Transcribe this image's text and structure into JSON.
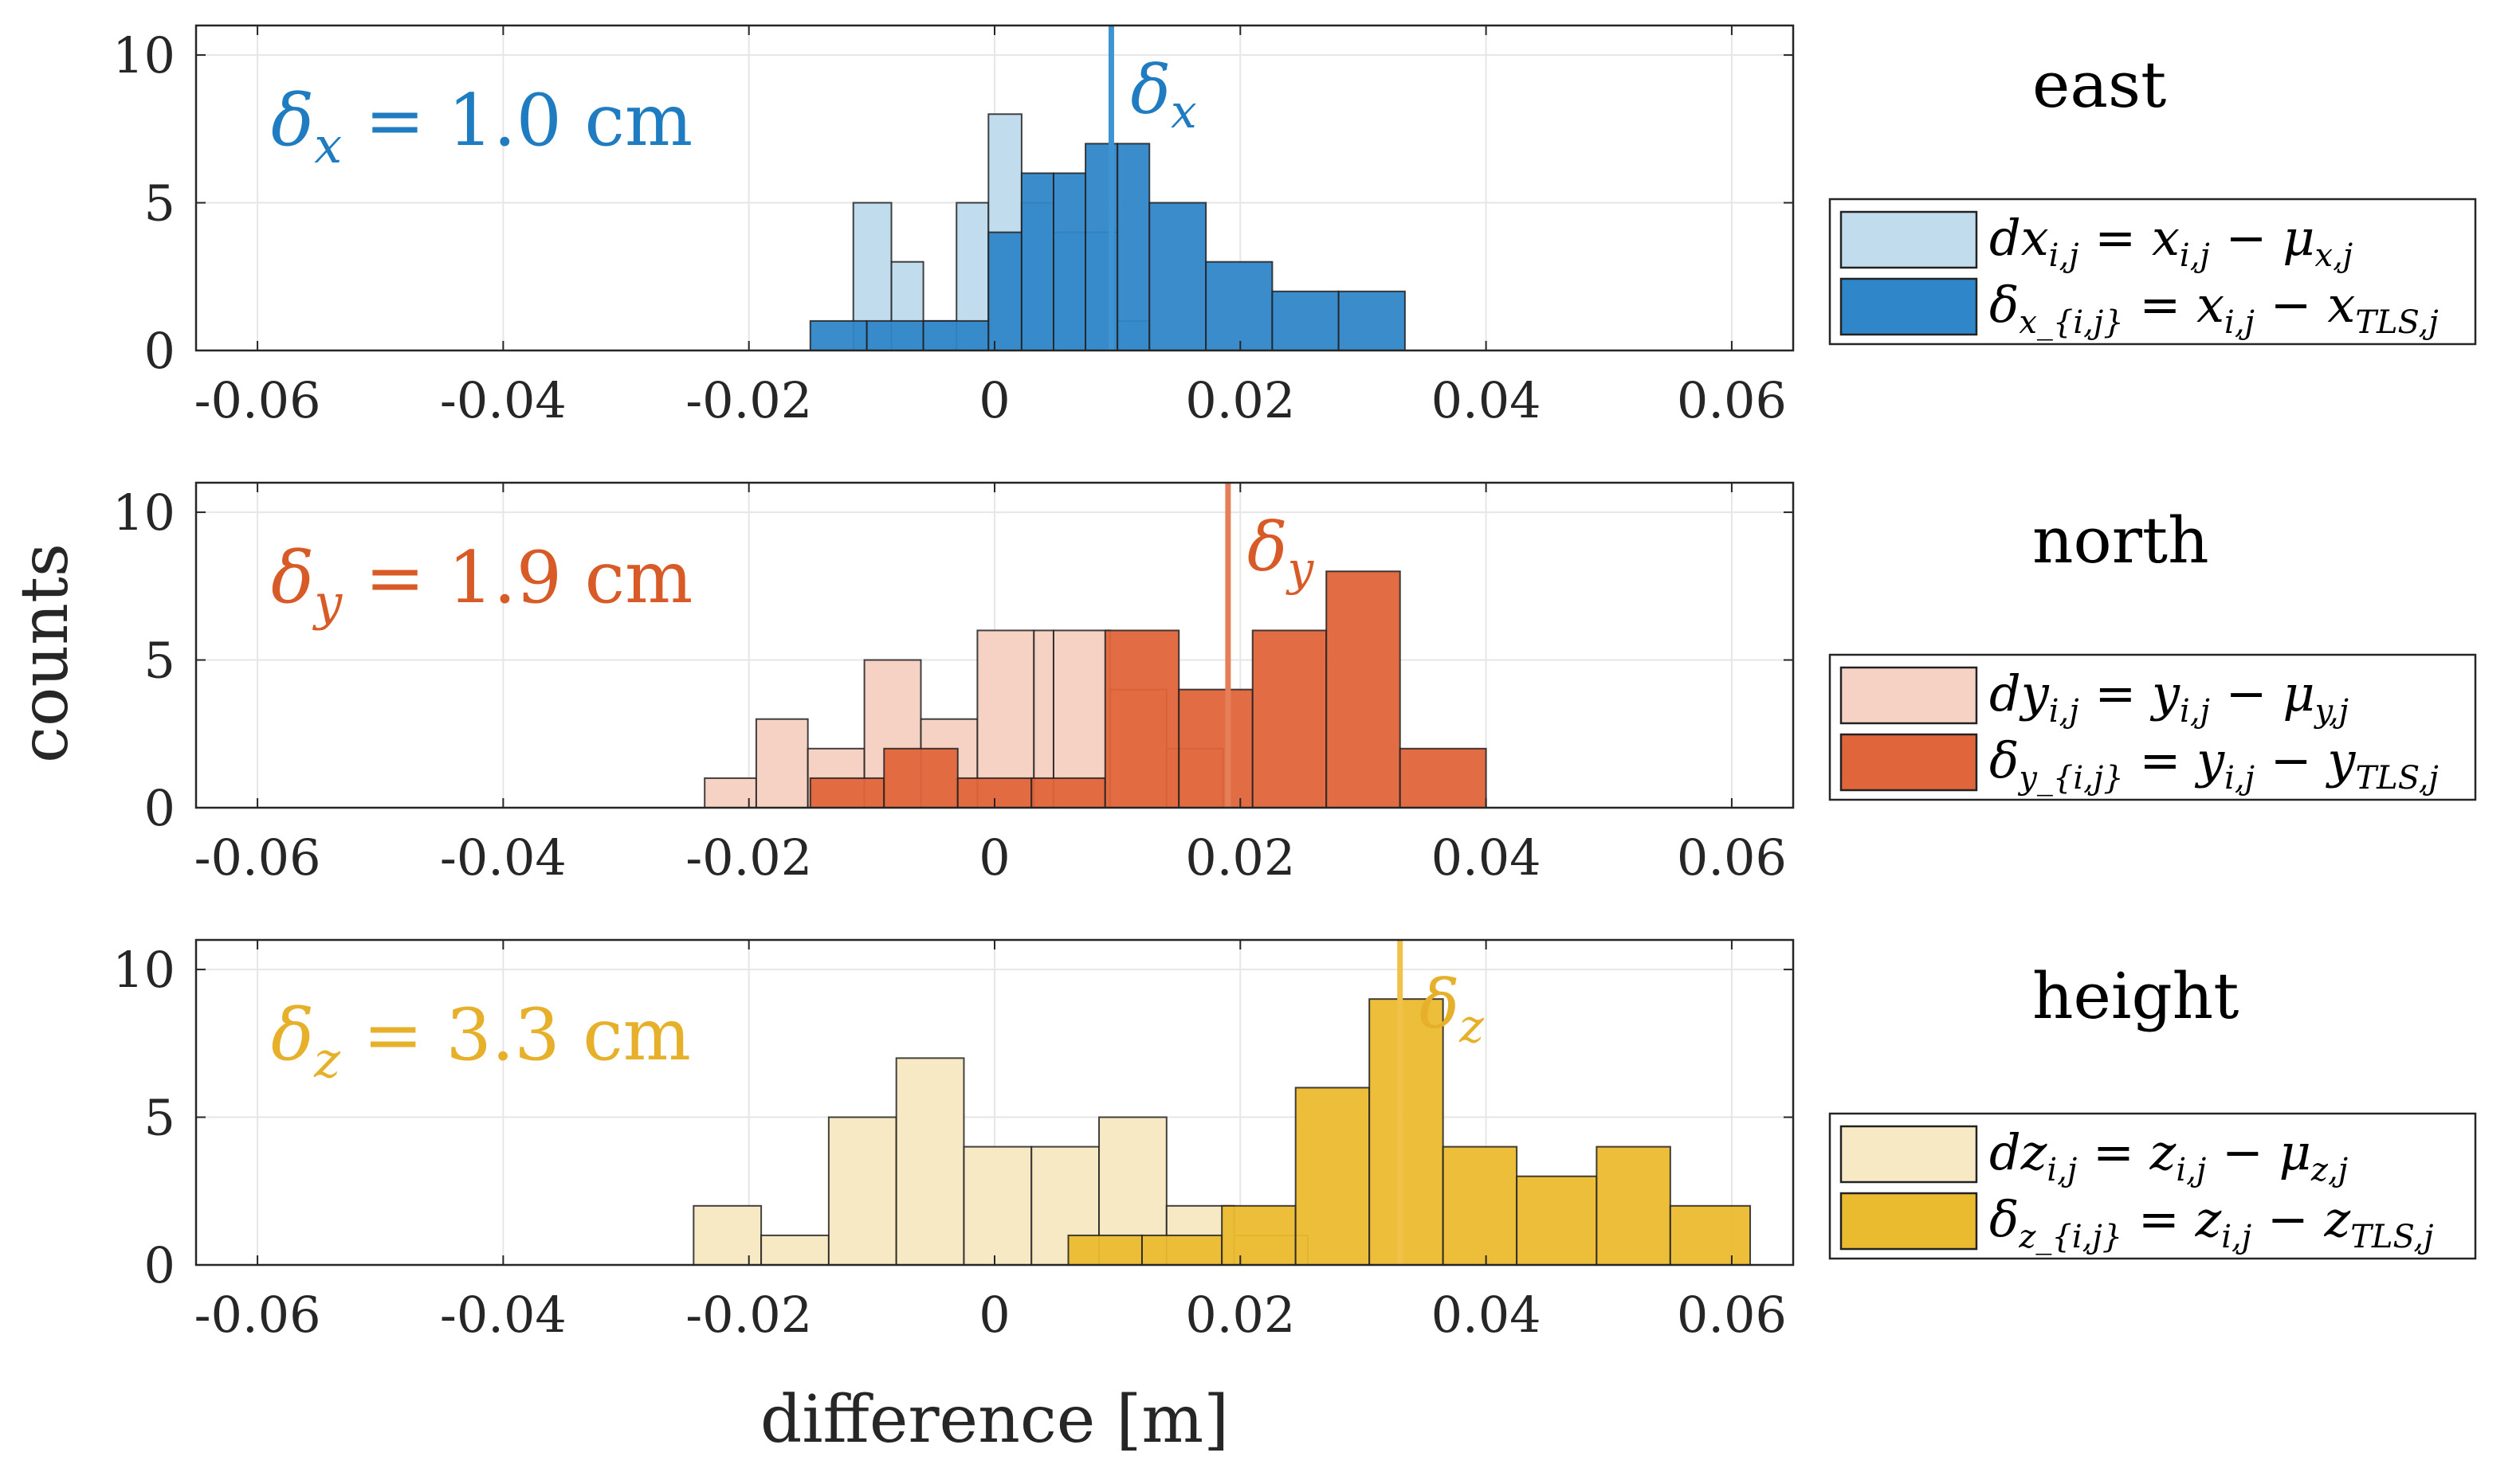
{
  "chart_data": {
    "type": "bar",
    "ylabel": "counts",
    "xlabel": "difference [m]",
    "xlim": [
      -0.065,
      0.065
    ],
    "ylim": [
      0,
      11
    ],
    "xticks": [
      -0.06,
      -0.04,
      -0.02,
      0,
      0.02,
      0.04,
      0.06
    ],
    "xtick_labels": [
      "-0.06",
      "-0.04",
      "-0.02",
      "0",
      "0.02",
      "0.04",
      "0.06"
    ],
    "yticks": [
      0,
      5,
      10
    ],
    "ytick_labels": [
      "0",
      "5",
      "10"
    ],
    "panels": [
      {
        "title": "east",
        "annotation": "δx = 1.0 cm",
        "annotation_symbol": "δ",
        "annotation_sub": "x",
        "annotation_rest": "= 1.0 cm",
        "mean_label_symbol": "δ",
        "mean_label_sub": "x",
        "mean_value": 0.0095,
        "colors": {
          "light": "#c0dced",
          "dark": "#2f86c8",
          "line": "#3e94d2",
          "text": "#1f7cc0"
        },
        "series": [
          {
            "name": "dx_{i,j} = x_{i,j} − μ_{x,j}",
            "legend": [
              "dx",
              "i,j",
              " = x",
              "i,j",
              " − μ",
              "x,j"
            ],
            "bin_edges": [
              -0.0115,
              -0.0084,
              -0.0058,
              -0.0031,
              -0.0005,
              0.0022,
              0.0048,
              0.0074,
              0.01,
              0.0126
            ],
            "counts": [
              5,
              3,
              1,
              5,
              8,
              5,
              4,
              4,
              1
            ]
          },
          {
            "name": "δ_{x_{i,j}} = x_{i,j} − x_{TLS,j}",
            "legend": [
              "δ",
              "x_{i,j}",
              " = x",
              "i,j",
              " − x",
              "TLS,j"
            ],
            "bin_edges": [
              -0.015,
              -0.0104,
              -0.0058,
              -0.0005,
              0.0022,
              0.0048,
              0.0074,
              0.01,
              0.0126,
              0.0172,
              0.0226,
              0.028,
              0.0334
            ],
            "counts": [
              1,
              1,
              1,
              4,
              6,
              6,
              7,
              7,
              5,
              3,
              2,
              2
            ]
          }
        ]
      },
      {
        "title": "north",
        "annotation": "δy = 1.9 cm",
        "annotation_symbol": "δ",
        "annotation_sub": "y",
        "annotation_rest": "= 1.9 cm",
        "mean_label_symbol": "δ",
        "mean_label_sub": "y",
        "mean_value": 0.019,
        "colors": {
          "light": "#f5d2c4",
          "dark": "#e0653a",
          "line": "#e57f5a",
          "text": "#d85a26"
        },
        "series": [
          {
            "name": "dy_{i,j} = y_{i,j} − μ_{y,j}",
            "legend": [
              "dy",
              "i,j",
              " = y",
              "i,j",
              " − μ",
              "y,j"
            ],
            "bin_edges": [
              -0.0236,
              -0.0194,
              -0.0152,
              -0.0106,
              -0.006,
              -0.0014,
              0.0032,
              0.0048,
              0.0094,
              0.014,
              0.0186
            ],
            "counts": [
              1,
              3,
              2,
              5,
              3,
              6,
              6,
              6,
              4,
              2
            ]
          },
          {
            "name": "δ_{y_{i,j}} = y_{i,j} − y_{TLS,j}",
            "legend": [
              "δ",
              "y_{i,j}",
              " = y",
              "i,j",
              " − y",
              "TLS,j"
            ],
            "bin_edges": [
              -0.015,
              -0.009,
              -0.003,
              0.003,
              0.009,
              0.015,
              0.021,
              0.027,
              0.033,
              0.04
            ],
            "counts": [
              1,
              2,
              1,
              1,
              6,
              4,
              6,
              8,
              2
            ]
          }
        ]
      },
      {
        "title": "height",
        "annotation": "δz = 3.3 cm",
        "annotation_symbol": "δ",
        "annotation_sub": "z",
        "annotation_rest": "= 3.3 cm",
        "mean_label_symbol": "δ",
        "mean_label_sub": "z",
        "mean_value": 0.033,
        "colors": {
          "light": "#f7e9c4",
          "dark": "#ebbb2f",
          "line": "#f0c24a",
          "text": "#e6b02a"
        },
        "series": [
          {
            "name": "dz_{i,j} = z_{i,j} − μ_{z,j}",
            "legend": [
              "dz",
              "i,j",
              " = z",
              "i,j",
              " − μ",
              "z,j"
            ],
            "bin_edges": [
              -0.0245,
              -0.019,
              -0.0135,
              -0.008,
              -0.0025,
              0.003,
              0.0085,
              0.014,
              0.0195,
              0.0255
            ],
            "counts": [
              2,
              1,
              5,
              7,
              4,
              4,
              5,
              2,
              1
            ]
          },
          {
            "name": "δ_{z_{i,j}} = z_{i,j} − z_{TLS,j}",
            "legend": [
              "δ",
              "z_{i,j}",
              " = z",
              "i,j",
              " − z",
              "TLS,j"
            ],
            "bin_edges": [
              0.006,
              0.012,
              0.0185,
              0.0245,
              0.0305,
              0.0365,
              0.0425,
              0.049,
              0.055,
              0.0615
            ],
            "counts": [
              1,
              1,
              2,
              6,
              9,
              4,
              3,
              4,
              2
            ]
          }
        ]
      }
    ]
  }
}
